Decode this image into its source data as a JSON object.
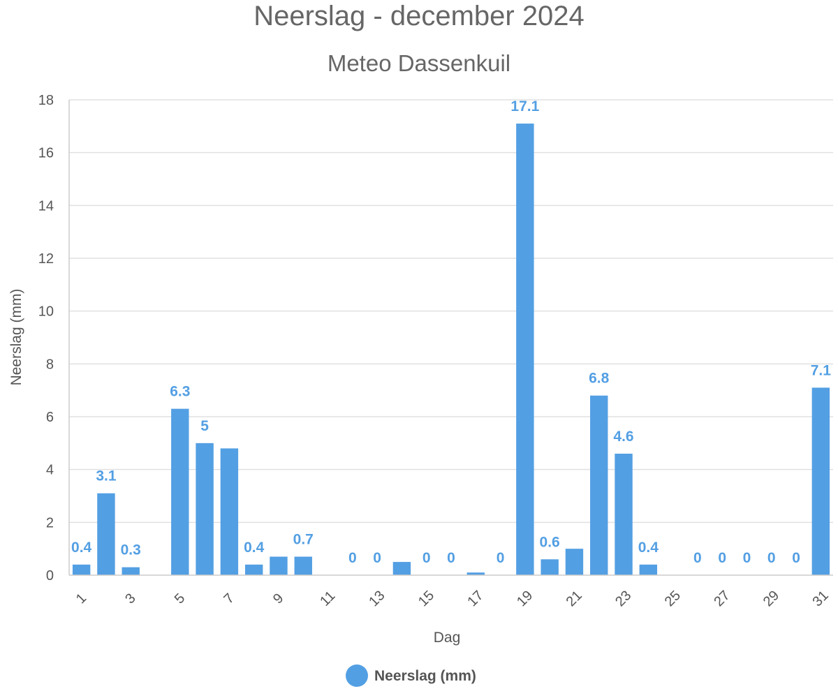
{
  "chart_data": {
    "type": "bar",
    "title": "Neerslag - december 2024",
    "subtitle": "Meteo Dassenkuil",
    "xlabel": "Dag",
    "ylabel": "Neerslag (mm)",
    "ylim": [
      0,
      18
    ],
    "yticks": [
      0,
      2,
      4,
      6,
      8,
      10,
      12,
      14,
      16,
      18
    ],
    "categories": [
      "1",
      "2",
      "3",
      "4",
      "5",
      "6",
      "7",
      "8",
      "9",
      "10",
      "11",
      "12",
      "13",
      "14",
      "15",
      "16",
      "17",
      "18",
      "19",
      "20",
      "21",
      "22",
      "23",
      "24",
      "25",
      "26",
      "27",
      "28",
      "29",
      "30",
      "31"
    ],
    "xtick_labels": [
      "1",
      "3",
      "5",
      "7",
      "9",
      "11",
      "13",
      "15",
      "17",
      "19",
      "21",
      "23",
      "25",
      "27",
      "29",
      "31"
    ],
    "series": [
      {
        "name": "Neerslag (mm)",
        "color": "#539fe3",
        "values": [
          0.4,
          3.1,
          0.3,
          0,
          6.3,
          5,
          4.8,
          0.4,
          0.7,
          0.7,
          0,
          0,
          0,
          0.5,
          0,
          0,
          0.1,
          0,
          17.1,
          0.6,
          1,
          6.8,
          4.6,
          0.4,
          0,
          0,
          0,
          0,
          0,
          0,
          7.1
        ]
      }
    ],
    "data_labels": [
      {
        "day": "1",
        "text": "0.4"
      },
      {
        "day": "2",
        "text": "3.1"
      },
      {
        "day": "3",
        "text": "0.3"
      },
      {
        "day": "5",
        "text": "6.3"
      },
      {
        "day": "6",
        "text": "5"
      },
      {
        "day": "8",
        "text": "0.4"
      },
      {
        "day": "10",
        "text": "0.7"
      },
      {
        "day": "12",
        "text": "0"
      },
      {
        "day": "13",
        "text": "0"
      },
      {
        "day": "15",
        "text": "0"
      },
      {
        "day": "16",
        "text": "0"
      },
      {
        "day": "18",
        "text": "0"
      },
      {
        "day": "19",
        "text": "17.1"
      },
      {
        "day": "20",
        "text": "0.6"
      },
      {
        "day": "22",
        "text": "6.8"
      },
      {
        "day": "23",
        "text": "4.6"
      },
      {
        "day": "24",
        "text": "0.4"
      },
      {
        "day": "26",
        "text": "0"
      },
      {
        "day": "27",
        "text": "0"
      },
      {
        "day": "28",
        "text": "0"
      },
      {
        "day": "29",
        "text": "0"
      },
      {
        "day": "30",
        "text": "0"
      },
      {
        "day": "31",
        "text": "7.1"
      }
    ],
    "grid": true,
    "legend": {
      "position": "bottom-center",
      "label": "Neerslag (mm)"
    }
  }
}
